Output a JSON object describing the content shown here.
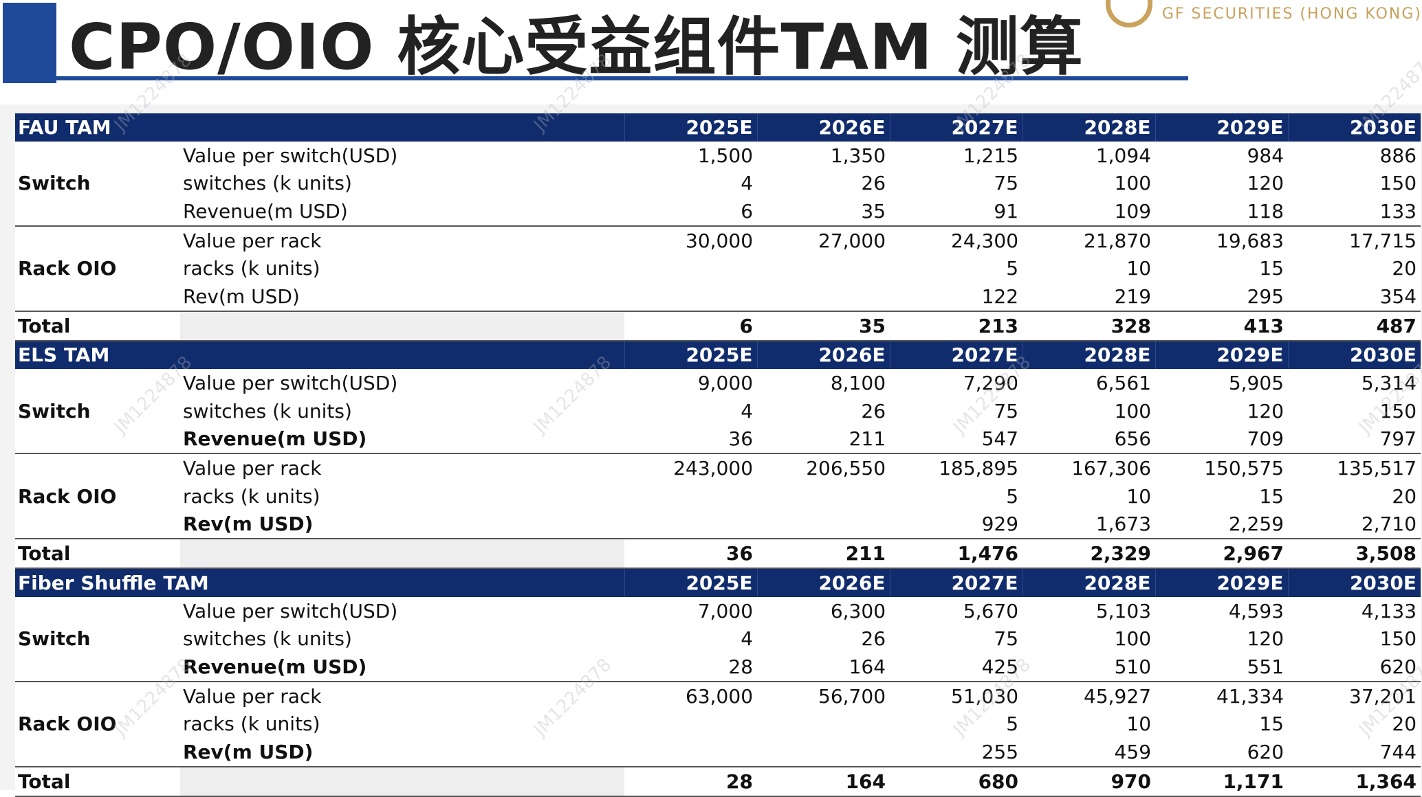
{
  "header": {
    "title": "CPO/OIO 核心受益组件TAM 测算",
    "logo_text": "GF SECURITIES (HONG KONG)"
  },
  "watermark": "JM1224878",
  "years": [
    "2025E",
    "2026E",
    "2027E",
    "2028E",
    "2029E",
    "2030E"
  ],
  "sections": [
    {
      "name": "FAU TAM",
      "groups": [
        {
          "label": "Switch",
          "rows": [
            {
              "name": "Value per switch(USD)",
              "bold": false,
              "values": [
                "1,500",
                "1,350",
                "1,215",
                "1,094",
                "984",
                "886"
              ]
            },
            {
              "name": "switches (k units)",
              "bold": false,
              "values": [
                "4",
                "26",
                "75",
                "100",
                "120",
                "150"
              ]
            },
            {
              "name": "Revenue(m USD)",
              "bold": false,
              "values": [
                "6",
                "35",
                "91",
                "109",
                "118",
                "133"
              ]
            }
          ]
        },
        {
          "label": "Rack OIO",
          "rows": [
            {
              "name": "Value per rack",
              "bold": false,
              "values": [
                "30,000",
                "27,000",
                "24,300",
                "21,870",
                "19,683",
                "17,715"
              ]
            },
            {
              "name": "racks (k units)",
              "bold": false,
              "values": [
                "",
                "",
                "5",
                "10",
                "15",
                "20"
              ]
            },
            {
              "name": "Rev(m USD)",
              "bold": false,
              "values": [
                "",
                "",
                "122",
                "219",
                "295",
                "354"
              ]
            }
          ]
        }
      ],
      "total": {
        "label": "Total",
        "values": [
          "6",
          "35",
          "213",
          "328",
          "413",
          "487"
        ]
      }
    },
    {
      "name": "ELS TAM",
      "groups": [
        {
          "label": "Switch",
          "rows": [
            {
              "name": "Value per switch(USD)",
              "bold": false,
              "values": [
                "9,000",
                "8,100",
                "7,290",
                "6,561",
                "5,905",
                "5,314"
              ]
            },
            {
              "name": "switches (k units)",
              "bold": false,
              "values": [
                "4",
                "26",
                "75",
                "100",
                "120",
                "150"
              ]
            },
            {
              "name": "Revenue(m USD)",
              "bold": true,
              "values": [
                "36",
                "211",
                "547",
                "656",
                "709",
                "797"
              ]
            }
          ]
        },
        {
          "label": "Rack OIO",
          "rows": [
            {
              "name": "Value per rack",
              "bold": false,
              "values": [
                "243,000",
                "206,550",
                "185,895",
                "167,306",
                "150,575",
                "135,517"
              ]
            },
            {
              "name": "racks (k units)",
              "bold": false,
              "values": [
                "",
                "",
                "5",
                "10",
                "15",
                "20"
              ]
            },
            {
              "name": "Rev(m USD)",
              "bold": true,
              "values": [
                "",
                "",
                "929",
                "1,673",
                "2,259",
                "2,710"
              ]
            }
          ]
        }
      ],
      "total": {
        "label": "Total",
        "values": [
          "36",
          "211",
          "1,476",
          "2,329",
          "2,967",
          "3,508"
        ]
      }
    },
    {
      "name": "Fiber Shuffle TAM",
      "groups": [
        {
          "label": "Switch",
          "rows": [
            {
              "name": "Value per switch(USD)",
              "bold": false,
              "values": [
                "7,000",
                "6,300",
                "5,670",
                "5,103",
                "4,593",
                "4,133"
              ]
            },
            {
              "name": "switches (k units)",
              "bold": false,
              "values": [
                "4",
                "26",
                "75",
                "100",
                "120",
                "150"
              ]
            },
            {
              "name": "Revenue(m USD)",
              "bold": true,
              "values": [
                "28",
                "164",
                "425",
                "510",
                "551",
                "620"
              ]
            }
          ]
        },
        {
          "label": "Rack OIO",
          "rows": [
            {
              "name": "Value per rack",
              "bold": false,
              "values": [
                "63,000",
                "56,700",
                "51,030",
                "45,927",
                "41,334",
                "37,201"
              ]
            },
            {
              "name": "racks (k units)",
              "bold": false,
              "values": [
                "",
                "",
                "5",
                "10",
                "15",
                "20"
              ]
            },
            {
              "name": "Rev(m USD)",
              "bold": true,
              "values": [
                "",
                "",
                "255",
                "459",
                "620",
                "744"
              ]
            }
          ]
        }
      ],
      "total": {
        "label": "Total",
        "values": [
          "28",
          "164",
          "680",
          "970",
          "1,171",
          "1,364"
        ]
      }
    }
  ]
}
